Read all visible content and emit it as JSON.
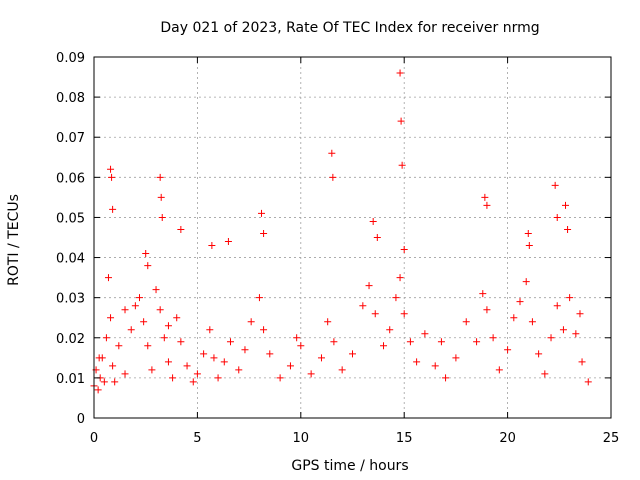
{
  "chart_data": {
    "type": "scatter",
    "title": "Day 021 of 2023, Rate Of TEC Index for receiver nrmg",
    "xlabel": "GPS time / hours",
    "ylabel": "ROTI / TECUs",
    "xlim": [
      0,
      25
    ],
    "ylim": [
      0,
      0.09
    ],
    "xticks": [
      0,
      5,
      10,
      15,
      20,
      25
    ],
    "xtick_labels": [
      "0",
      "5",
      "10",
      "15",
      "20",
      "25"
    ],
    "yticks": [
      0,
      0.01,
      0.02,
      0.03,
      0.04,
      0.05,
      0.06,
      0.07,
      0.08,
      0.09
    ],
    "ytick_labels": [
      "0",
      "0.01",
      "0.02",
      "0.03",
      "0.04",
      "0.05",
      "0.06",
      "0.07",
      "0.08",
      "0.09"
    ],
    "grid": true,
    "marker": "+",
    "color": "#ff0000",
    "series": [
      {
        "name": "ROTI",
        "x": [
          0.0,
          0.1,
          0.2,
          0.3,
          0.4,
          0.5,
          0.6,
          0.7,
          0.8,
          0.9,
          1.0,
          1.2,
          1.5,
          1.8,
          2.0,
          2.2,
          2.4,
          2.6,
          2.8,
          3.0,
          3.2,
          3.4,
          3.6,
          3.8,
          4.0,
          4.2,
          4.5,
          4.8,
          5.0,
          5.3,
          5.6,
          5.8,
          6.0,
          6.3,
          6.6,
          7.0,
          7.3,
          7.6,
          8.0,
          8.2,
          8.5,
          9.0,
          9.5,
          10.0,
          10.5,
          11.0,
          11.3,
          11.6,
          12.0,
          12.5,
          13.0,
          13.3,
          13.6,
          14.0,
          14.3,
          14.6,
          14.8,
          15.0,
          15.3,
          15.6,
          16.0,
          16.5,
          17.0,
          17.5,
          18.0,
          18.5,
          18.8,
          19.0,
          19.3,
          19.6,
          20.0,
          20.3,
          20.6,
          20.9,
          21.2,
          21.5,
          21.8,
          22.1,
          22.4,
          22.7,
          23.0,
          23.3,
          23.6,
          23.9,
          0.8,
          0.85,
          0.9,
          3.2,
          3.25,
          3.3,
          4.2,
          5.7,
          8.1,
          8.2,
          11.5,
          11.55,
          14.8,
          14.85,
          14.9,
          18.9,
          19.0,
          22.3,
          22.4,
          22.8,
          22.9,
          13.5,
          13.7,
          21.0,
          21.05,
          6.5,
          2.5,
          2.6,
          15.0,
          0.25,
          1.5,
          3.6,
          9.8,
          16.8,
          23.5
        ],
        "y": [
          0.008,
          0.012,
          0.007,
          0.01,
          0.015,
          0.009,
          0.02,
          0.035,
          0.025,
          0.013,
          0.009,
          0.018,
          0.011,
          0.022,
          0.028,
          0.03,
          0.024,
          0.018,
          0.012,
          0.032,
          0.027,
          0.02,
          0.014,
          0.01,
          0.025,
          0.019,
          0.013,
          0.009,
          0.011,
          0.016,
          0.022,
          0.015,
          0.01,
          0.014,
          0.019,
          0.012,
          0.017,
          0.024,
          0.03,
          0.022,
          0.016,
          0.01,
          0.013,
          0.018,
          0.011,
          0.015,
          0.024,
          0.019,
          0.012,
          0.016,
          0.028,
          0.033,
          0.026,
          0.018,
          0.022,
          0.03,
          0.035,
          0.026,
          0.019,
          0.014,
          0.021,
          0.013,
          0.01,
          0.015,
          0.024,
          0.019,
          0.031,
          0.027,
          0.02,
          0.012,
          0.017,
          0.025,
          0.029,
          0.034,
          0.024,
          0.016,
          0.011,
          0.02,
          0.028,
          0.022,
          0.03,
          0.021,
          0.014,
          0.009,
          0.062,
          0.06,
          0.052,
          0.06,
          0.055,
          0.05,
          0.047,
          0.043,
          0.051,
          0.046,
          0.066,
          0.06,
          0.086,
          0.074,
          0.063,
          0.055,
          0.053,
          0.058,
          0.05,
          0.053,
          0.047,
          0.049,
          0.045,
          0.046,
          0.043,
          0.044,
          0.041,
          0.038,
          0.042,
          0.015,
          0.027,
          0.023,
          0.02,
          0.019,
          0.026
        ]
      }
    ]
  }
}
